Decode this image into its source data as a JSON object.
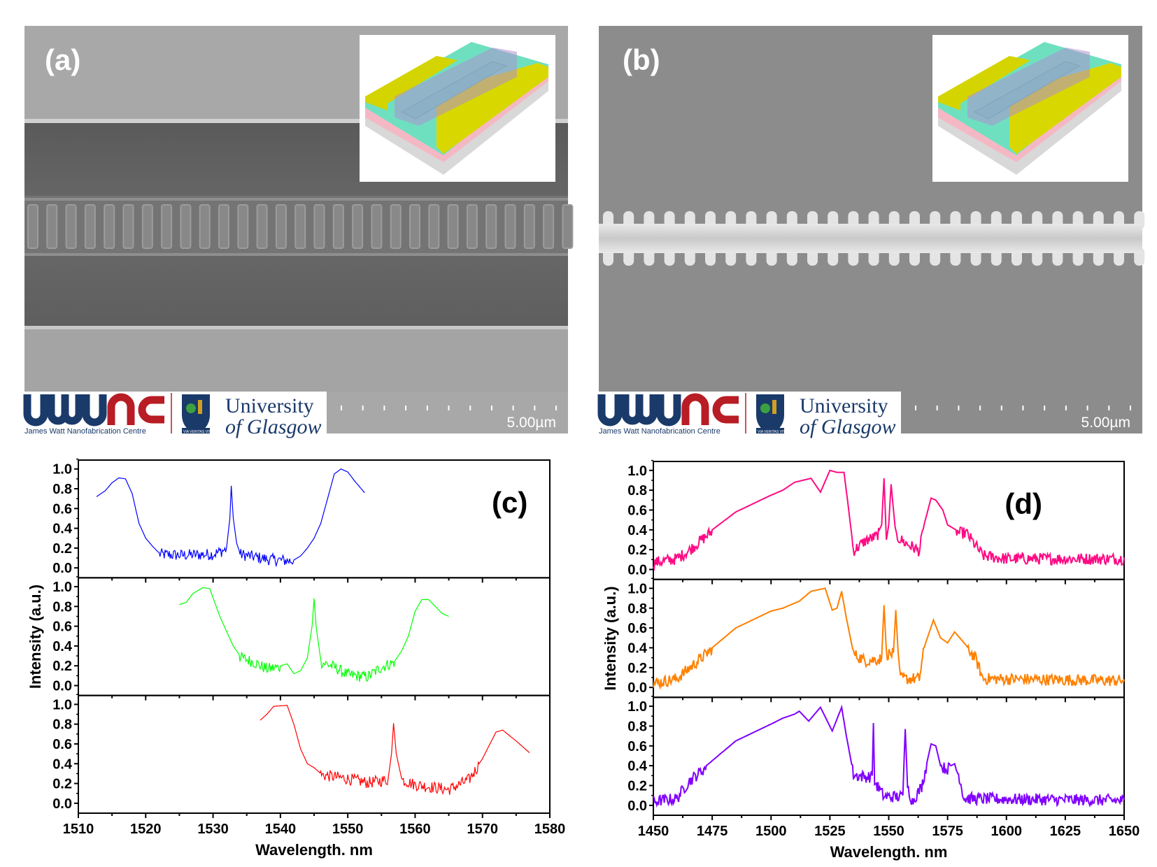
{
  "panels": {
    "a": {
      "label": "(a)",
      "scale_bar": "5.00µm",
      "logo_jwnc_text": "James Watt Nanofabrication Centre",
      "logo_uog_line1": "University",
      "logo_uog_line2": "of Glasgow",
      "logo_uog_motto": "VIA VERITAS VITA"
    },
    "b": {
      "label": "(b)",
      "scale_bar": "5.00µm",
      "logo_jwnc_text": "James Watt Nanofabrication Centre",
      "logo_uog_line1": "University",
      "logo_uog_line2": "of Glasgow",
      "logo_uog_motto": "VIA VERITAS VITA"
    },
    "c": {
      "label": "(c)"
    },
    "d": {
      "label": "(d)"
    }
  },
  "chart_data": [
    {
      "type": "line",
      "panel_label": "(c)",
      "xlabel": "Wavelength. nm",
      "ylabel": "Intensity (a.u.)",
      "xlim": [
        1510,
        1580
      ],
      "xticks": [
        1510,
        1520,
        1530,
        1540,
        1550,
        1560,
        1570,
        1580
      ],
      "ylim": [
        -0.1,
        1.09
      ],
      "yticks": [
        "0.0",
        "0.2",
        "0.4",
        "0.6",
        "0.8",
        "1.0"
      ],
      "layout": "stacked",
      "grid": false,
      "series": [
        {
          "color": "#0000ff",
          "points": [
            [
              1512.7,
              0.72
            ],
            [
              1514,
              0.78
            ],
            [
              1515,
              0.86
            ],
            [
              1516,
              0.91
            ],
            [
              1517,
              0.9
            ],
            [
              1518,
              0.75
            ],
            [
              1519,
              0.45
            ],
            [
              1520,
              0.3
            ],
            [
              1521,
              0.22
            ],
            [
              1522,
              0.15
            ],
            [
              1525,
              0.14
            ],
            [
              1530,
              0.15
            ],
            [
              1532,
              0.2
            ],
            [
              1532.5,
              0.5
            ],
            [
              1532.7,
              0.83
            ],
            [
              1533,
              0.5
            ],
            [
              1533.5,
              0.25
            ],
            [
              1534,
              0.15
            ],
            [
              1538,
              0.1
            ],
            [
              1542,
              0.08
            ],
            [
              1543,
              0.12
            ],
            [
              1544,
              0.2
            ],
            [
              1545,
              0.3
            ],
            [
              1546,
              0.45
            ],
            [
              1547,
              0.7
            ],
            [
              1548,
              0.95
            ],
            [
              1549,
              1.0
            ],
            [
              1550,
              0.97
            ],
            [
              1551,
              0.88
            ],
            [
              1552,
              0.8
            ],
            [
              1552.5,
              0.76
            ]
          ]
        },
        {
          "color": "#00ff00",
          "points": [
            [
              1525,
              0.82
            ],
            [
              1526,
              0.84
            ],
            [
              1527,
              0.93
            ],
            [
              1528.5,
              0.99
            ],
            [
              1529.5,
              0.98
            ],
            [
              1531,
              0.7
            ],
            [
              1532,
              0.55
            ],
            [
              1533,
              0.4
            ],
            [
              1534,
              0.3
            ],
            [
              1536,
              0.25
            ],
            [
              1538,
              0.18
            ],
            [
              1540,
              0.2
            ],
            [
              1541,
              0.22
            ],
            [
              1542,
              0.12
            ],
            [
              1543,
              0.15
            ],
            [
              1544,
              0.28
            ],
            [
              1544.7,
              0.6
            ],
            [
              1545,
              0.88
            ],
            [
              1545.3,
              0.6
            ],
            [
              1546,
              0.25
            ],
            [
              1548,
              0.2
            ],
            [
              1550,
              0.12
            ],
            [
              1553,
              0.1
            ],
            [
              1555,
              0.2
            ],
            [
              1557,
              0.25
            ],
            [
              1558,
              0.35
            ],
            [
              1559,
              0.5
            ],
            [
              1560,
              0.75
            ],
            [
              1561,
              0.87
            ],
            [
              1562,
              0.87
            ],
            [
              1563,
              0.8
            ],
            [
              1564,
              0.73
            ],
            [
              1565,
              0.7
            ]
          ]
        },
        {
          "color": "#ff0000",
          "points": [
            [
              1537,
              0.84
            ],
            [
              1538,
              0.9
            ],
            [
              1539,
              0.98
            ],
            [
              1541,
              0.99
            ],
            [
              1542,
              0.8
            ],
            [
              1543,
              0.55
            ],
            [
              1544,
              0.4
            ],
            [
              1545,
              0.36
            ],
            [
              1546,
              0.3
            ],
            [
              1550,
              0.26
            ],
            [
              1553,
              0.22
            ],
            [
              1556,
              0.25
            ],
            [
              1556.5,
              0.5
            ],
            [
              1556.8,
              0.81
            ],
            [
              1557.2,
              0.5
            ],
            [
              1558,
              0.25
            ],
            [
              1560,
              0.2
            ],
            [
              1565,
              0.15
            ],
            [
              1568,
              0.25
            ],
            [
              1570,
              0.45
            ],
            [
              1572,
              0.72
            ],
            [
              1573,
              0.74
            ],
            [
              1575,
              0.63
            ],
            [
              1577,
              0.51
            ]
          ]
        }
      ]
    },
    {
      "type": "line",
      "panel_label": "(d)",
      "xlabel": "Wavelength. nm",
      "ylabel": "Intensity (a.u.)",
      "xlim": [
        1450,
        1650
      ],
      "xticks": [
        1450,
        1475,
        1500,
        1525,
        1550,
        1575,
        1600,
        1625,
        1650
      ],
      "ylim": [
        -0.1,
        1.09
      ],
      "yticks": [
        "0.0",
        "0.2",
        "0.4",
        "0.6",
        "0.8",
        "1.0"
      ],
      "layout": "stacked",
      "grid": false,
      "series": [
        {
          "color": "#ff0a84",
          "points": [
            [
              1450,
              0.08
            ],
            [
              1460,
              0.12
            ],
            [
              1465,
              0.2
            ],
            [
              1475,
              0.4
            ],
            [
              1485,
              0.58
            ],
            [
              1500,
              0.75
            ],
            [
              1505,
              0.8
            ],
            [
              1510,
              0.88
            ],
            [
              1517,
              0.92
            ],
            [
              1521,
              0.78
            ],
            [
              1525,
              1.0
            ],
            [
              1528,
              0.98
            ],
            [
              1531,
              0.98
            ],
            [
              1533,
              0.6
            ],
            [
              1535,
              0.2
            ],
            [
              1540,
              0.3
            ],
            [
              1545,
              0.35
            ],
            [
              1547,
              0.45
            ],
            [
              1548,
              0.92
            ],
            [
              1549,
              0.3
            ],
            [
              1550,
              0.45
            ],
            [
              1551,
              0.86
            ],
            [
              1553,
              0.35
            ],
            [
              1557,
              0.28
            ],
            [
              1563,
              0.2
            ],
            [
              1565,
              0.45
            ],
            [
              1568,
              0.72
            ],
            [
              1570,
              0.7
            ],
            [
              1573,
              0.6
            ],
            [
              1575,
              0.45
            ],
            [
              1580,
              0.38
            ],
            [
              1583,
              0.38
            ],
            [
              1587,
              0.25
            ],
            [
              1590,
              0.15
            ],
            [
              1600,
              0.12
            ],
            [
              1650,
              0.12
            ]
          ]
        },
        {
          "color": "#ff8000",
          "points": [
            [
              1450,
              0.05
            ],
            [
              1460,
              0.1
            ],
            [
              1465,
              0.2
            ],
            [
              1475,
              0.4
            ],
            [
              1485,
              0.6
            ],
            [
              1500,
              0.77
            ],
            [
              1505,
              0.8
            ],
            [
              1512,
              0.87
            ],
            [
              1517,
              0.97
            ],
            [
              1523,
              1.0
            ],
            [
              1526,
              0.78
            ],
            [
              1528,
              0.8
            ],
            [
              1530,
              0.97
            ],
            [
              1532,
              0.7
            ],
            [
              1535,
              0.35
            ],
            [
              1540,
              0.28
            ],
            [
              1547,
              0.3
            ],
            [
              1548,
              0.83
            ],
            [
              1549,
              0.35
            ],
            [
              1552,
              0.35
            ],
            [
              1553,
              0.78
            ],
            [
              1554,
              0.35
            ],
            [
              1555,
              0.1
            ],
            [
              1563,
              0.1
            ],
            [
              1565,
              0.4
            ],
            [
              1569,
              0.68
            ],
            [
              1572,
              0.5
            ],
            [
              1575,
              0.45
            ],
            [
              1578,
              0.56
            ],
            [
              1582,
              0.45
            ],
            [
              1587,
              0.3
            ],
            [
              1590,
              0.1
            ],
            [
              1650,
              0.08
            ]
          ]
        },
        {
          "color": "#8000ff",
          "points": [
            [
              1450,
              0.05
            ],
            [
              1460,
              0.08
            ],
            [
              1465,
              0.25
            ],
            [
              1475,
              0.45
            ],
            [
              1485,
              0.65
            ],
            [
              1500,
              0.82
            ],
            [
              1505,
              0.88
            ],
            [
              1510,
              0.92
            ],
            [
              1512,
              0.95
            ],
            [
              1516,
              0.85
            ],
            [
              1521,
              0.99
            ],
            [
              1526,
              0.75
            ],
            [
              1530,
              0.99
            ],
            [
              1532,
              0.7
            ],
            [
              1535,
              0.32
            ],
            [
              1540,
              0.3
            ],
            [
              1543,
              0.3
            ],
            [
              1543.5,
              0.83
            ],
            [
              1544,
              0.25
            ],
            [
              1548,
              0.1
            ],
            [
              1556,
              0.1
            ],
            [
              1557,
              0.77
            ],
            [
              1558,
              0.2
            ],
            [
              1560,
              0.05
            ],
            [
              1564,
              0.2
            ],
            [
              1568,
              0.62
            ],
            [
              1570,
              0.6
            ],
            [
              1572,
              0.4
            ],
            [
              1575,
              0.38
            ],
            [
              1578,
              0.42
            ],
            [
              1580,
              0.3
            ],
            [
              1582,
              0.08
            ],
            [
              1650,
              0.06
            ]
          ]
        }
      ]
    }
  ]
}
